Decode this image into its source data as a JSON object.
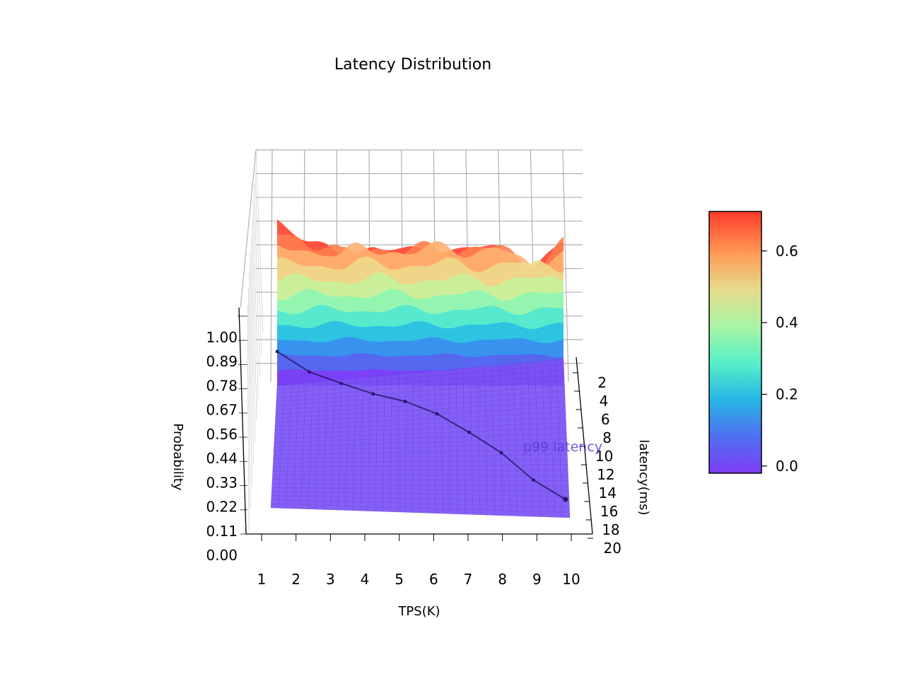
{
  "chart_data": {
    "type": "surface3d",
    "title": "Latency Distribution",
    "xlabel": "TPS(K)",
    "ylabel": "latency(ms)",
    "zlabel": "Probability",
    "x_ticks": [
      "1",
      "2",
      "3",
      "4",
      "5",
      "6",
      "7",
      "8",
      "9",
      "10"
    ],
    "y_ticks": [
      "2",
      "4",
      "6",
      "8",
      "10",
      "12",
      "14",
      "16",
      "18",
      "20"
    ],
    "z_ticks": [
      "0.00",
      "0.11",
      "0.22",
      "0.33",
      "0.44",
      "0.56",
      "0.67",
      "0.78",
      "0.89",
      "1.00"
    ],
    "xlim": [
      1,
      10
    ],
    "ylim": [
      0,
      20
    ],
    "zlim": [
      0,
      1
    ],
    "grid": true,
    "colormap": "rainbow",
    "colorbar": {
      "ticks": [
        "0.0",
        "0.2",
        "0.4",
        "0.6"
      ],
      "vmin": -0.02,
      "vmax": 0.71
    },
    "surface_peak_probability": [
      0.71,
      0.62,
      0.55,
      0.6,
      0.57,
      0.58,
      0.59,
      0.58,
      0.5,
      0.61
    ],
    "p99_line": {
      "label": "p99 latency",
      "x": [
        1,
        2,
        3,
        4,
        5,
        6,
        7,
        8,
        9,
        10
      ],
      "y": [
        0.5,
        2.4,
        3.4,
        4.3,
        4.9,
        6.0,
        7.7,
        9.6,
        12.2,
        14.0
      ]
    },
    "colors": {
      "grid": "#b0b0b0",
      "axis": "#000000",
      "line": "#2a1a6a",
      "surface_base": "#7b52f5"
    }
  }
}
